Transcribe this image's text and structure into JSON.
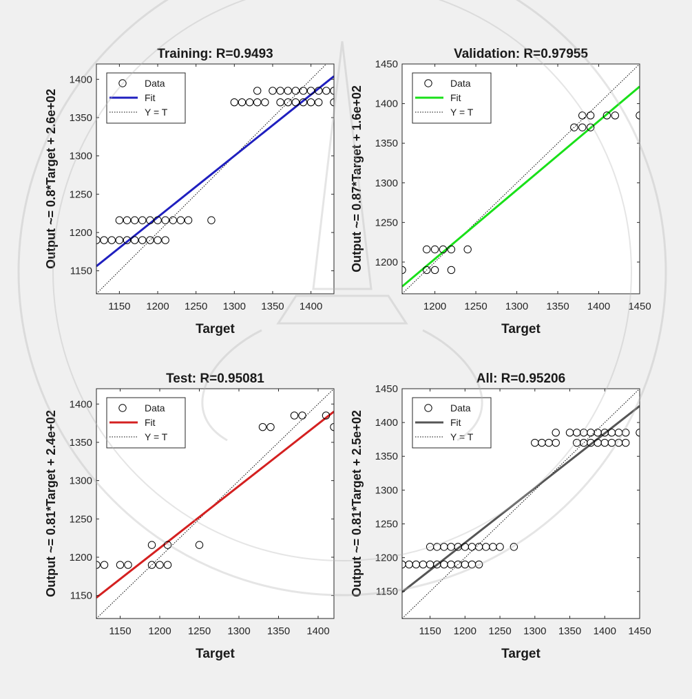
{
  "colors": {
    "background": "#f0f0f0",
    "axes_background": "#ffffff",
    "data_marker": "#000000",
    "identity_line": "#000000"
  },
  "chart_data": [
    {
      "type": "scatter",
      "title": "Training: R=0.9493",
      "xlabel": "Target",
      "ylabel": "Output ~= 0.8*Target + 2.6e+02",
      "xlim": [
        1120,
        1430
      ],
      "ylim": [
        1120,
        1420
      ],
      "xticks": [
        1150,
        1200,
        1250,
        1300,
        1350,
        1400
      ],
      "yticks": [
        1150,
        1200,
        1250,
        1300,
        1350,
        1400
      ],
      "grid": false,
      "legend_position": "top-left",
      "legend": [
        "Data",
        "Fit",
        "Y = T"
      ],
      "fit_color": "#1f1fbf",
      "fit": {
        "slope": 0.8,
        "intercept": 260
      },
      "points": [
        [
          1120,
          1190
        ],
        [
          1130,
          1190
        ],
        [
          1140,
          1190
        ],
        [
          1150,
          1190
        ],
        [
          1160,
          1190
        ],
        [
          1170,
          1190
        ],
        [
          1180,
          1190
        ],
        [
          1190,
          1190
        ],
        [
          1200,
          1190
        ],
        [
          1210,
          1190
        ],
        [
          1150,
          1216
        ],
        [
          1160,
          1216
        ],
        [
          1170,
          1216
        ],
        [
          1180,
          1216
        ],
        [
          1190,
          1216
        ],
        [
          1200,
          1216
        ],
        [
          1210,
          1216
        ],
        [
          1220,
          1216
        ],
        [
          1230,
          1216
        ],
        [
          1240,
          1216
        ],
        [
          1270,
          1216
        ],
        [
          1300,
          1370
        ],
        [
          1310,
          1370
        ],
        [
          1320,
          1370
        ],
        [
          1330,
          1370
        ],
        [
          1340,
          1370
        ],
        [
          1360,
          1370
        ],
        [
          1370,
          1370
        ],
        [
          1380,
          1370
        ],
        [
          1390,
          1370
        ],
        [
          1400,
          1370
        ],
        [
          1410,
          1370
        ],
        [
          1430,
          1370
        ],
        [
          1330,
          1385
        ],
        [
          1350,
          1385
        ],
        [
          1360,
          1385
        ],
        [
          1370,
          1385
        ],
        [
          1380,
          1385
        ],
        [
          1390,
          1385
        ],
        [
          1400,
          1385
        ],
        [
          1410,
          1385
        ],
        [
          1420,
          1385
        ],
        [
          1430,
          1385
        ]
      ]
    },
    {
      "type": "scatter",
      "title": "Validation: R=0.97955",
      "xlabel": "Target",
      "ylabel": "Output ~= 0.87*Target + 1.6e+02",
      "xlim": [
        1160,
        1450
      ],
      "ylim": [
        1160,
        1450
      ],
      "xticks": [
        1200,
        1250,
        1300,
        1350,
        1400,
        1450
      ],
      "yticks": [
        1200,
        1250,
        1300,
        1350,
        1400,
        1450
      ],
      "grid": false,
      "legend_position": "top-left",
      "legend": [
        "Data",
        "Fit",
        "Y = T"
      ],
      "fit_color": "#19e019",
      "fit": {
        "slope": 0.87,
        "intercept": 160
      },
      "points": [
        [
          1160,
          1190
        ],
        [
          1190,
          1190
        ],
        [
          1200,
          1190
        ],
        [
          1220,
          1190
        ],
        [
          1190,
          1216
        ],
        [
          1200,
          1216
        ],
        [
          1210,
          1216
        ],
        [
          1220,
          1216
        ],
        [
          1240,
          1216
        ],
        [
          1370,
          1370
        ],
        [
          1380,
          1370
        ],
        [
          1390,
          1370
        ],
        [
          1380,
          1385
        ],
        [
          1390,
          1385
        ],
        [
          1410,
          1385
        ],
        [
          1420,
          1385
        ],
        [
          1450,
          1385
        ]
      ]
    },
    {
      "type": "scatter",
      "title": "Test: R=0.95081",
      "xlabel": "Target",
      "ylabel": "Output ~= 0.81*Target + 2.4e+02",
      "xlim": [
        1120,
        1420
      ],
      "ylim": [
        1120,
        1420
      ],
      "xticks": [
        1150,
        1200,
        1250,
        1300,
        1350,
        1400
      ],
      "yticks": [
        1150,
        1200,
        1250,
        1300,
        1350,
        1400
      ],
      "grid": false,
      "legend_position": "top-left",
      "legend": [
        "Data",
        "Fit",
        "Y = T"
      ],
      "fit_color": "#d42020",
      "fit": {
        "slope": 0.81,
        "intercept": 240
      },
      "points": [
        [
          1120,
          1190
        ],
        [
          1130,
          1190
        ],
        [
          1150,
          1190
        ],
        [
          1160,
          1190
        ],
        [
          1190,
          1190
        ],
        [
          1200,
          1190
        ],
        [
          1210,
          1190
        ],
        [
          1190,
          1216
        ],
        [
          1210,
          1216
        ],
        [
          1250,
          1216
        ],
        [
          1330,
          1370
        ],
        [
          1340,
          1370
        ],
        [
          1420,
          1370
        ],
        [
          1370,
          1385
        ],
        [
          1380,
          1385
        ],
        [
          1410,
          1385
        ]
      ]
    },
    {
      "type": "scatter",
      "title": "All: R=0.95206",
      "xlabel": "Target",
      "ylabel": "Output ~= 0.81*Target + 2.5e+02",
      "xlim": [
        1110,
        1450
      ],
      "ylim": [
        1110,
        1450
      ],
      "xticks": [
        1150,
        1200,
        1250,
        1300,
        1350,
        1400,
        1450
      ],
      "yticks": [
        1150,
        1200,
        1250,
        1300,
        1350,
        1400,
        1450
      ],
      "grid": false,
      "legend_position": "top-left",
      "legend": [
        "Data",
        "Fit",
        "Y = T"
      ],
      "fit_color": "#555555",
      "fit": {
        "slope": 0.81,
        "intercept": 250
      },
      "points": [
        [
          1110,
          1190
        ],
        [
          1120,
          1190
        ],
        [
          1130,
          1190
        ],
        [
          1140,
          1190
        ],
        [
          1150,
          1190
        ],
        [
          1160,
          1190
        ],
        [
          1170,
          1190
        ],
        [
          1180,
          1190
        ],
        [
          1190,
          1190
        ],
        [
          1200,
          1190
        ],
        [
          1210,
          1190
        ],
        [
          1220,
          1190
        ],
        [
          1150,
          1216
        ],
        [
          1160,
          1216
        ],
        [
          1170,
          1216
        ],
        [
          1180,
          1216
        ],
        [
          1190,
          1216
        ],
        [
          1200,
          1216
        ],
        [
          1210,
          1216
        ],
        [
          1220,
          1216
        ],
        [
          1230,
          1216
        ],
        [
          1240,
          1216
        ],
        [
          1250,
          1216
        ],
        [
          1270,
          1216
        ],
        [
          1300,
          1370
        ],
        [
          1310,
          1370
        ],
        [
          1320,
          1370
        ],
        [
          1330,
          1370
        ],
        [
          1360,
          1370
        ],
        [
          1370,
          1370
        ],
        [
          1380,
          1370
        ],
        [
          1390,
          1370
        ],
        [
          1400,
          1370
        ],
        [
          1410,
          1370
        ],
        [
          1420,
          1370
        ],
        [
          1430,
          1370
        ],
        [
          1330,
          1385
        ],
        [
          1350,
          1385
        ],
        [
          1360,
          1385
        ],
        [
          1370,
          1385
        ],
        [
          1380,
          1385
        ],
        [
          1390,
          1385
        ],
        [
          1400,
          1385
        ],
        [
          1410,
          1385
        ],
        [
          1420,
          1385
        ],
        [
          1430,
          1385
        ],
        [
          1450,
          1385
        ]
      ]
    }
  ]
}
